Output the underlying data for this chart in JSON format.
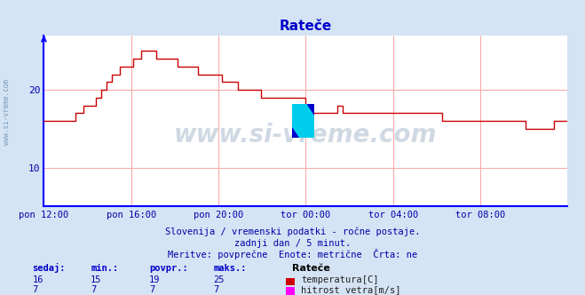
{
  "title": "Rateče",
  "title_color": "#0000cc",
  "bg_color": "#d4e4f4",
  "plot_bg_color": "#ffffff",
  "grid_color": "#ffaaaa",
  "axis_color": "#0000ff",
  "temp_color": "#cc0000",
  "wind_color": "#ff00ff",
  "watermark": "www.si-vreme.com",
  "subtitle1": "Slovenija / vremenski podatki - ročne postaje.",
  "subtitle2": "zadnji dan / 5 minut.",
  "subtitle3": "Meritve: povprečne  Enote: metrične  Črta: ne",
  "legend_title": "Rateče",
  "legend_temp": "temperatura[C]",
  "legend_wind": "hitrost vetra[m/s]",
  "stats_headers": [
    "sedaj:",
    "min.:",
    "povpr.:",
    "maks.:"
  ],
  "stats_temp": [
    16,
    15,
    19,
    25
  ],
  "stats_wind": [
    7,
    7,
    7,
    7
  ],
  "text_color": "#0000aa",
  "xtick_labels": [
    "pon 12:00",
    "pon 16:00",
    "pon 20:00",
    "tor 00:00",
    "tor 04:00",
    "tor 08:00"
  ],
  "xtick_positions": [
    0.0,
    0.1667,
    0.3333,
    0.5,
    0.6667,
    0.8333
  ],
  "xlim": [
    0,
    1.0
  ],
  "ylim": [
    5.0,
    27.0
  ],
  "yticks": [
    10,
    20
  ],
  "time_x": [
    0.0,
    0.01,
    0.02,
    0.04,
    0.06,
    0.075,
    0.085,
    0.1,
    0.11,
    0.12,
    0.13,
    0.145,
    0.16,
    0.17,
    0.185,
    0.2,
    0.215,
    0.23,
    0.24,
    0.255,
    0.27,
    0.285,
    0.295,
    0.31,
    0.325,
    0.34,
    0.355,
    0.37,
    0.385,
    0.4,
    0.415,
    0.43,
    0.445,
    0.46,
    0.475,
    0.49,
    0.5,
    0.51,
    0.52,
    0.535,
    0.55,
    0.56,
    0.57,
    0.585,
    0.6,
    0.615,
    0.63,
    0.645,
    0.66,
    0.675,
    0.685,
    0.7,
    0.715,
    0.73,
    0.745,
    0.76,
    0.77,
    0.785,
    0.8,
    0.815,
    0.83,
    0.845,
    0.86,
    0.87,
    0.88,
    0.895,
    0.91,
    0.92,
    0.935,
    0.95,
    0.965,
    0.975,
    0.99,
    1.0
  ],
  "temp_y": [
    16,
    16,
    16,
    16,
    17,
    18,
    18,
    19,
    20,
    21,
    22,
    23,
    23,
    24,
    25,
    25,
    24,
    24,
    24,
    23,
    23,
    23,
    22,
    22,
    22,
    21,
    21,
    20,
    20,
    20,
    19,
    19,
    19,
    19,
    19,
    19,
    18,
    17,
    17,
    17,
    17,
    18,
    17,
    17,
    17,
    17,
    17,
    17,
    17,
    17,
    17,
    17,
    17,
    17,
    17,
    16,
    16,
    16,
    16,
    16,
    16,
    16,
    16,
    16,
    16,
    16,
    16,
    15,
    15,
    15,
    15,
    16,
    16,
    16
  ]
}
